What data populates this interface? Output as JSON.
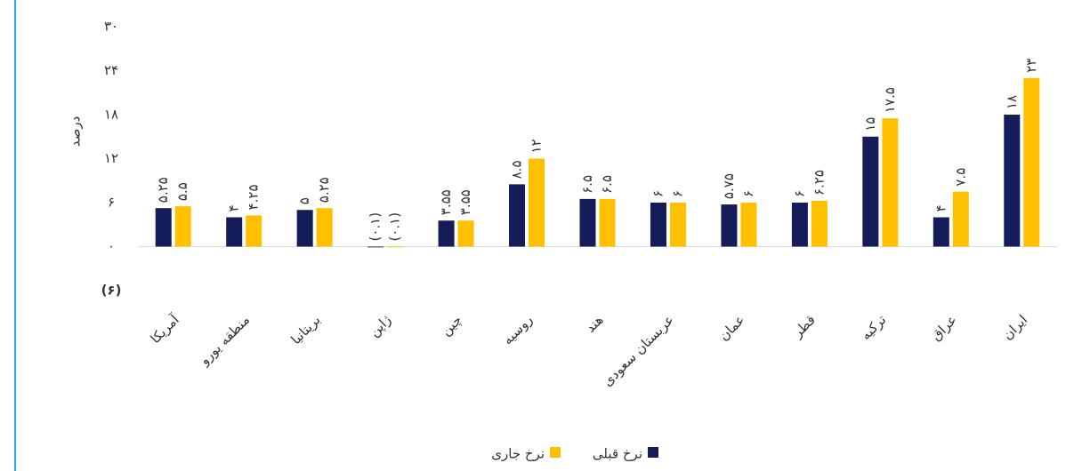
{
  "chart_data": {
    "type": "bar",
    "y_label": "درصد",
    "categories": [
      "آمریکا",
      "منطقه یورو",
      "بریتانیا",
      "ژاپن",
      "چین",
      "روسیه",
      "هند",
      "عربستان سعودی",
      "عمان",
      "قطر",
      "ترکیه",
      "عراق",
      "ایران"
    ],
    "series": [
      {
        "name": "نرخ قبلی",
        "color": "#141c5a",
        "values": [
          5.25,
          4,
          5,
          -0.1,
          3.55,
          8.5,
          6.5,
          6,
          5.75,
          6,
          15,
          4,
          18
        ],
        "value_labels": [
          "۵.۲۵",
          "۴",
          "۵",
          "(۰.۱)",
          "۳.۵۵",
          "۸.۵",
          "۶.۵",
          "۶",
          "۵.۷۵",
          "۶",
          "۱۵",
          "۴",
          "۱۸"
        ]
      },
      {
        "name": "نرخ جاری",
        "color": "#ffc000",
        "values": [
          5.5,
          4.25,
          5.25,
          -0.1,
          3.55,
          12,
          6.5,
          6,
          6,
          6.25,
          17.5,
          7.5,
          23
        ],
        "value_labels": [
          "۵.۵",
          "۴.۲۵",
          "۵.۲۵",
          "(۰.۱)",
          "۳.۵۵",
          "۱۲",
          "۶.۵",
          "۶",
          "۶",
          "۶.۲۵",
          "۱۷.۵",
          "۷.۵",
          "۲۳"
        ]
      }
    ],
    "ylim": [
      -6,
      30
    ],
    "yticks": [
      {
        "value": -6,
        "label": "(۶)"
      },
      {
        "value": 0,
        "label": "۰"
      },
      {
        "value": 6,
        "label": "۶"
      },
      {
        "value": 12,
        "label": "۱۲"
      },
      {
        "value": 18,
        "label": "۱۸"
      },
      {
        "value": 24,
        "label": "۲۴"
      },
      {
        "value": 30,
        "label": "۳۰"
      }
    ],
    "grid": false,
    "legend": "bottom"
  }
}
